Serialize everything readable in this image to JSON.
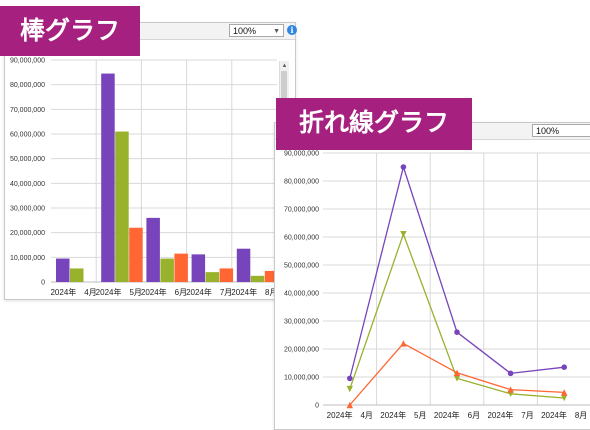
{
  "bar_window": {
    "tag_label": "棒グラフ",
    "zoom": "100%",
    "info_icon": "info-icon",
    "scroll_up_icon": "arrow-up-icon"
  },
  "line_window": {
    "tag_label": "折れ線グラフ",
    "zoom": "100%"
  },
  "colors": {
    "tag": "#a6217f",
    "series1": "#7744bb",
    "series2": "#99b22c",
    "series3": "#ff6633"
  },
  "chart_data": [
    {
      "type": "bar",
      "categories": [
        "2024年　4月",
        "2024年　5月",
        "2024年　6月",
        "2024年　7月",
        "2024年　8月"
      ],
      "series": [
        {
          "values": [
            9500000,
            84500000,
            26000000,
            11200000,
            13500000
          ]
        },
        {
          "values": [
            5500000,
            61000000,
            9500000,
            4000000,
            2500000
          ]
        },
        {
          "values": [
            0,
            22000000,
            11500000,
            5500000,
            4500000
          ]
        }
      ],
      "ylim": [
        0,
        90000000
      ],
      "yticks": [
        "0",
        "10,000,000",
        "20,000,000",
        "30,000,000",
        "40,000,000",
        "50,000,000",
        "60,000,000",
        "70,000,000",
        "80,000,000",
        "90,000,000"
      ],
      "grid": true
    },
    {
      "type": "line",
      "categories": [
        "2024年　4月",
        "2024年　5月",
        "2024年　6月",
        "2024年　7月",
        "2024年　8月"
      ],
      "series": [
        {
          "values": [
            9500000,
            85000000,
            26000000,
            11300000,
            13500000
          ],
          "marker": "circle"
        },
        {
          "values": [
            5700000,
            61000000,
            9500000,
            4000000,
            2500000
          ],
          "marker": "triangle-down"
        },
        {
          "values": [
            0,
            22000000,
            11500000,
            5500000,
            4500000
          ],
          "marker": "triangle-up"
        }
      ],
      "ylim": [
        0,
        90000000
      ],
      "yticks": [
        "0",
        "10,000,000",
        "20,000,000",
        "30,000,000",
        "40,000,000",
        "50,000,000",
        "60,000,000",
        "70,000,000",
        "80,000,000",
        "90,000,000"
      ],
      "grid": true
    }
  ]
}
